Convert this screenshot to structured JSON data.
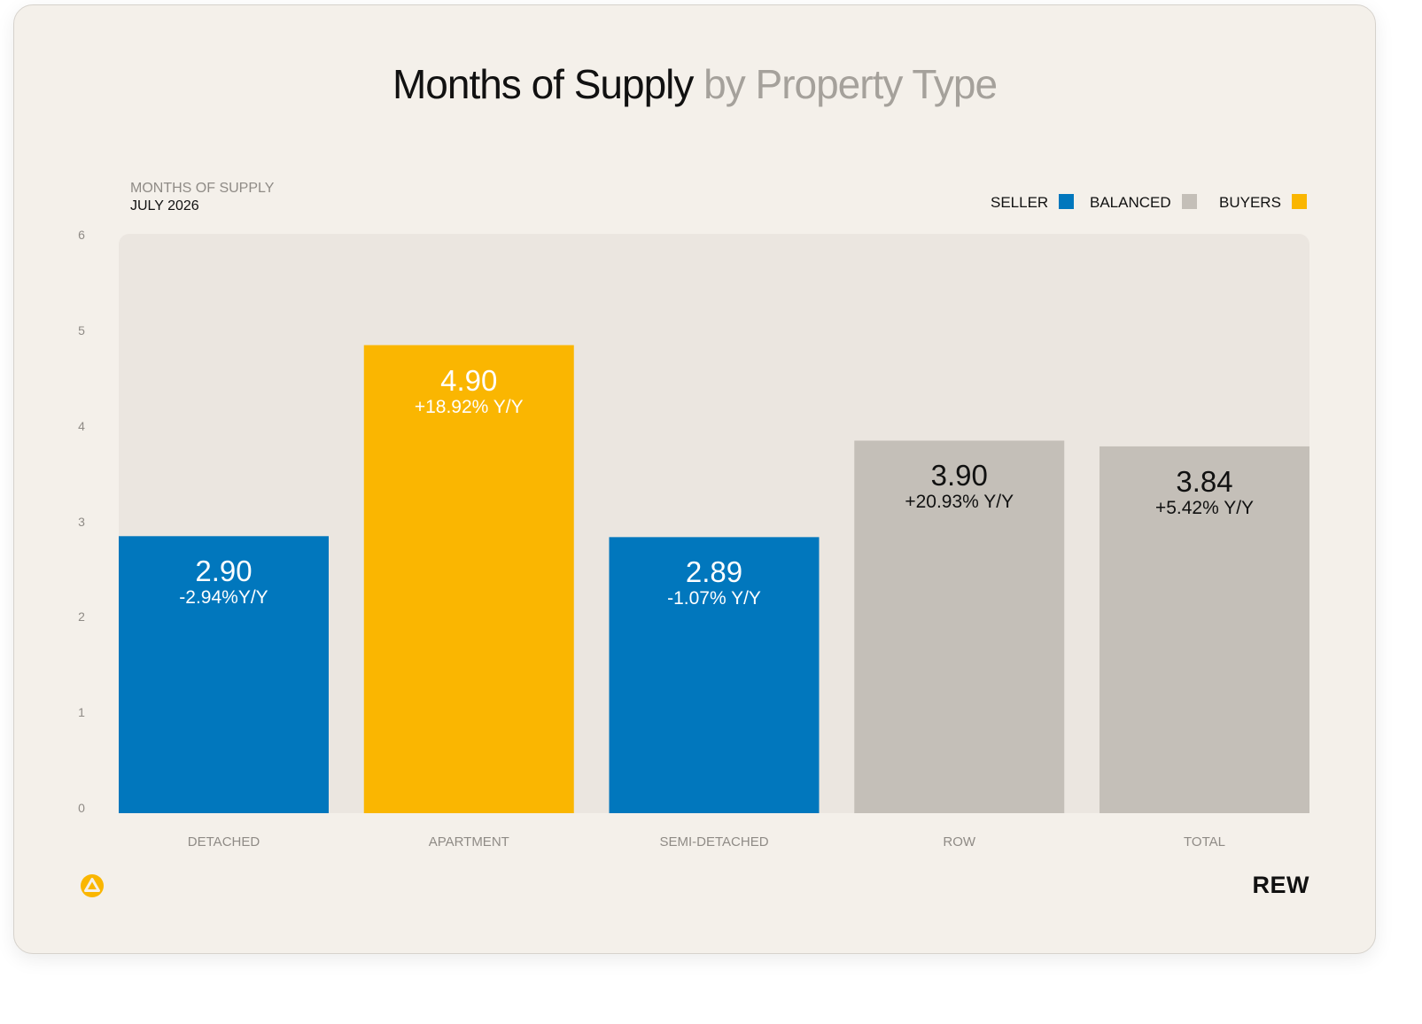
{
  "title_main": "Months of Supply",
  "title_sub": "by Property Type",
  "brand": "REW",
  "colors": {
    "seller": "#0177bd",
    "balanced": "#c4bfb8",
    "buyers": "#fab601",
    "plot_bg": "#ebe6e0",
    "card_bg": "#f4f0ea"
  },
  "icons": {
    "logo": "rew-triangle-circle-icon"
  },
  "chart_data": {
    "type": "bar",
    "title": "Months of Supply by Property Type",
    "subtitle_line1": "MONTHS OF SUPPLY",
    "subtitle_line2": "JULY 2026",
    "categories": [
      "DETACHED",
      "APARTMENT",
      "SEMI-DETACHED",
      "ROW",
      "TOTAL"
    ],
    "values": [
      2.9,
      4.9,
      2.89,
      3.9,
      3.84
    ],
    "value_labels": [
      "2.90",
      "4.90",
      "2.89",
      "3.90",
      "3.84"
    ],
    "changes": [
      "-2.94%Y/Y",
      "+18.92% Y/Y",
      "-1.07% Y/Y",
      "+20.93% Y/Y",
      "+5.42% Y/Y"
    ],
    "market": [
      "seller",
      "buyers",
      "seller",
      "balanced",
      "balanced"
    ],
    "yticks": [
      0,
      1,
      2,
      3,
      4,
      5,
      6
    ],
    "ylim": [
      0,
      6
    ],
    "grid": false,
    "legend_position": "top-right",
    "legend": [
      {
        "key": "seller",
        "label": "SELLER"
      },
      {
        "key": "balanced",
        "label": "BALANCED"
      },
      {
        "key": "buyers",
        "label": "BUYERS"
      }
    ]
  }
}
